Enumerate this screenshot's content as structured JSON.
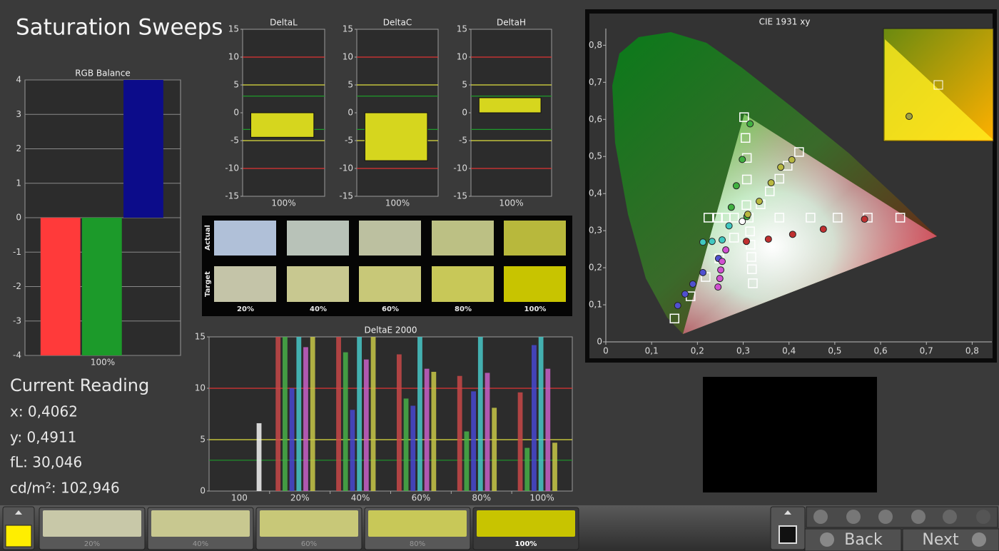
{
  "title": "Saturation Sweeps",
  "current_reading": {
    "heading": "Current Reading",
    "x": "x: 0,4062",
    "y": "y: 0,4911",
    "fl": "fL: 30,046",
    "cd": "cd/m²: 102,946"
  },
  "chart_data": [
    {
      "type": "bar",
      "title": "RGB Balance",
      "categories": [
        "100%"
      ],
      "series": [
        {
          "color": "#ff3a3a",
          "values": [
            -4
          ]
        },
        {
          "color": "#1c9a2a",
          "values": [
            -4
          ]
        },
        {
          "color": "#0c0c8a",
          "values": [
            4
          ]
        }
      ],
      "ylim": [
        -4,
        4
      ],
      "yticks": [
        -4,
        -3,
        -2,
        -1,
        0,
        1,
        2,
        3,
        4
      ],
      "grid": true
    },
    {
      "type": "bar",
      "title": "DeltaL",
      "categories": [
        "100%"
      ],
      "values": [
        -4.4
      ],
      "color": "#d6d61e",
      "ylim": [
        -15,
        15
      ],
      "yticks": [
        -15,
        -10,
        -5,
        0,
        5,
        10,
        15
      ],
      "hlines": [
        {
          "value": 10,
          "color": "#e03434"
        },
        {
          "value": -10,
          "color": "#e03434"
        },
        {
          "value": 5,
          "color": "#e0e040"
        },
        {
          "value": -5,
          "color": "#e0e040"
        },
        {
          "value": 3,
          "color": "#1e9a2a"
        },
        {
          "value": -3,
          "color": "#1e9a2a"
        }
      ]
    },
    {
      "type": "bar",
      "title": "DeltaC",
      "categories": [
        "100%"
      ],
      "values": [
        -8.6
      ],
      "color": "#d6d61e",
      "ylim": [
        -15,
        15
      ],
      "yticks": [
        -15,
        -10,
        -5,
        0,
        5,
        10,
        15
      ],
      "hlines": [
        {
          "value": 10,
          "color": "#e03434"
        },
        {
          "value": -10,
          "color": "#e03434"
        },
        {
          "value": 5,
          "color": "#e0e040"
        },
        {
          "value": -5,
          "color": "#e0e040"
        },
        {
          "value": 3,
          "color": "#1e9a2a"
        },
        {
          "value": -3,
          "color": "#1e9a2a"
        }
      ]
    },
    {
      "type": "bar",
      "title": "DeltaH",
      "categories": [
        "100%"
      ],
      "values": [
        2.7
      ],
      "color": "#d6d61e",
      "ylim": [
        -15,
        15
      ],
      "yticks": [
        -15,
        -10,
        -5,
        0,
        5,
        10,
        15
      ],
      "hlines": [
        {
          "value": 10,
          "color": "#e03434"
        },
        {
          "value": -10,
          "color": "#e03434"
        },
        {
          "value": 5,
          "color": "#e0e040"
        },
        {
          "value": -5,
          "color": "#e0e040"
        },
        {
          "value": 3,
          "color": "#1e9a2a"
        },
        {
          "value": -3,
          "color": "#1e9a2a"
        }
      ]
    },
    {
      "type": "bar",
      "title": "DeltaE 2000",
      "categories": [
        "100",
        "20%",
        "40%",
        "60%",
        "80%",
        "100%"
      ],
      "series": [
        {
          "color": "#c84848",
          "values": [
            null,
            15,
            15,
            13.3,
            11.2,
            9.6
          ]
        },
        {
          "color": "#48b048",
          "values": [
            null,
            15,
            13.5,
            9,
            5.8,
            4.2
          ]
        },
        {
          "color": "#4848d0",
          "values": [
            null,
            10,
            7.9,
            8.3,
            9.7,
            14.2
          ]
        },
        {
          "color": "#48c8c8",
          "values": [
            null,
            15,
            15,
            15,
            15,
            15
          ]
        },
        {
          "color": "#c860c8",
          "values": [
            null,
            14,
            12.8,
            11.9,
            11.5,
            11.9
          ]
        },
        {
          "color": "#c8c848",
          "values": [
            null,
            15,
            15,
            11.6,
            8.1,
            4.7
          ]
        },
        {
          "color": "#f4f4f4",
          "values": [
            6.6,
            null,
            null,
            null,
            null,
            null
          ]
        }
      ],
      "ylim": [
        0,
        15
      ],
      "yticks": [
        0,
        5,
        10,
        15
      ],
      "hlines": [
        {
          "value": 10,
          "color": "#e03434"
        },
        {
          "value": 5,
          "color": "#e0e040"
        },
        {
          "value": 3,
          "color": "#1e9a2a"
        }
      ]
    },
    {
      "type": "scatter",
      "title": "CIE 1931 xy",
      "xlim": [
        0,
        0.843
      ],
      "ylim": [
        0,
        0.845
      ],
      "xticks": [
        0,
        {
          "value": 0.1,
          "label": "0,1"
        },
        {
          "value": 0.2,
          "label": "0,2"
        },
        {
          "value": 0.3,
          "label": "0,3"
        },
        {
          "value": 0.4,
          "label": "0,4"
        },
        {
          "value": 0.5,
          "label": "0,5"
        },
        {
          "value": 0.6,
          "label": "0,6"
        },
        {
          "value": 0.7,
          "label": "0,7"
        },
        {
          "value": 0.8,
          "label": "0,8"
        }
      ],
      "yticks": [
        0,
        {
          "value": 0.1,
          "label": "0,1"
        },
        {
          "value": 0.2,
          "label": "0,2"
        },
        {
          "value": 0.3,
          "label": "0,3"
        },
        {
          "value": 0.4,
          "label": "0,4"
        },
        {
          "value": 0.5,
          "label": "0,5"
        },
        {
          "value": 0.6,
          "label": "0,6"
        },
        {
          "value": 0.7,
          "label": "0,7"
        },
        {
          "value": 0.8,
          "label": "0,8"
        }
      ],
      "series": [
        {
          "marker": "square",
          "color": "#ffffff",
          "x": [
            0.312,
            0.379,
            0.447,
            0.506,
            0.572,
            0.643,
            0.307,
            0.308,
            0.308,
            0.305,
            0.302,
            0.28,
            0.262,
            0.245,
            0.224,
            0.28,
            0.248,
            0.218,
            0.185,
            0.15,
            0.315,
            0.316,
            0.318,
            0.319,
            0.321,
            0.338,
            0.358,
            0.379,
            0.397,
            0.422
          ],
          "y": [
            0.335,
            0.335,
            0.335,
            0.335,
            0.335,
            0.335,
            0.369,
            0.438,
            0.496,
            0.55,
            0.606,
            0.335,
            0.335,
            0.335,
            0.335,
            0.281,
            0.225,
            0.175,
            0.123,
            0.063,
            0.298,
            0.262,
            0.229,
            0.196,
            0.158,
            0.371,
            0.406,
            0.44,
            0.475,
            0.512
          ]
        },
        {
          "marker": "circle",
          "color": "#ffffff",
          "x": [
            0.298
          ],
          "y": [
            0.325
          ]
        },
        {
          "marker": "circle",
          "color": "#c03030",
          "x": [
            0.307,
            0.355,
            0.408,
            0.475,
            0.565
          ],
          "y": [
            0.271,
            0.277,
            0.29,
            0.304,
            0.331
          ]
        },
        {
          "marker": "circle",
          "color": "#40b040",
          "x": [
            0.308,
            0.274,
            0.285,
            0.298,
            0.315
          ],
          "y": [
            0.338,
            0.363,
            0.421,
            0.492,
            0.588
          ]
        },
        {
          "marker": "circle",
          "color": "#40c8c0",
          "x": [
            0.269,
            0.254,
            0.232,
            0.212
          ],
          "y": [
            0.313,
            0.275,
            0.271,
            0.269
          ]
        },
        {
          "marker": "circle",
          "color": "#5050d0",
          "x": [
            0.246,
            0.212,
            0.19,
            0.173,
            0.157
          ],
          "y": [
            0.225,
            0.187,
            0.156,
            0.129,
            0.098
          ]
        },
        {
          "marker": "circle",
          "color": "#d050d0",
          "x": [
            0.262,
            0.254,
            0.251,
            0.249,
            0.245
          ],
          "y": [
            0.248,
            0.217,
            0.194,
            0.171,
            0.148
          ]
        },
        {
          "marker": "circle",
          "color": "#b8b840",
          "x": [
            0.31,
            0.335,
            0.361,
            0.382,
            0.4062
          ],
          "y": [
            0.344,
            0.379,
            0.429,
            0.471,
            0.4911
          ]
        }
      ]
    }
  ],
  "swatch_panel": {
    "row_labels": [
      "Actual",
      "Target"
    ],
    "columns": [
      "20%",
      "40%",
      "60%",
      "80%",
      "100%"
    ],
    "actual_colors": [
      "#b0c0d8",
      "#b8c2b8",
      "#bcc0a0",
      "#bcc084",
      "#b8b83c"
    ],
    "target_colors": [
      "#c4c4a8",
      "#c8c890",
      "#c8c878",
      "#c8c858",
      "#c8c400"
    ]
  },
  "bottom_bar": {
    "current_color": "#ffee00",
    "swatches": [
      {
        "label": "20%",
        "color": "#c8c8a8"
      },
      {
        "label": "40%",
        "color": "#c8c890"
      },
      {
        "label": "60%",
        "color": "#c8c878"
      },
      {
        "label": "80%",
        "color": "#c8c858"
      },
      {
        "label": "100%",
        "color": "#c8c400"
      }
    ],
    "back": "Back",
    "next": "Next"
  }
}
